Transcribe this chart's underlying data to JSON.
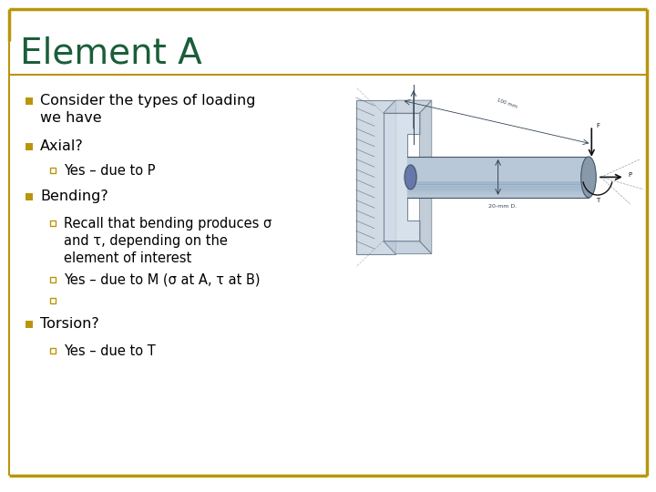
{
  "title": "Element A",
  "title_color": "#1a5e3a",
  "title_fontsize": 28,
  "bg_color": "#ffffff",
  "border_top_color": "#b8960c",
  "border_bottom_color": "#b8960c",
  "bullet_color": "#b8960c",
  "text_color": "#000000",
  "bullet1": "Consider the types of loading\nwe have",
  "bullet2": "Axial?",
  "sub_bullet2_1": "Yes – due to P",
  "bullet3": "Bending?",
  "sub_bullet3_1": "Recall that bending produces σ\nand τ, depending on the\nelement of interest",
  "sub_bullet3_2": "Yes – due to M (σ at A, τ at B)",
  "sub_bullet3_3": "",
  "bullet4": "Torsion?",
  "sub_bullet4_1": "Yes – due to T",
  "text_fontsize": 11.5,
  "sub_text_fontsize": 10.5,
  "diagram_label": "20-mm D."
}
